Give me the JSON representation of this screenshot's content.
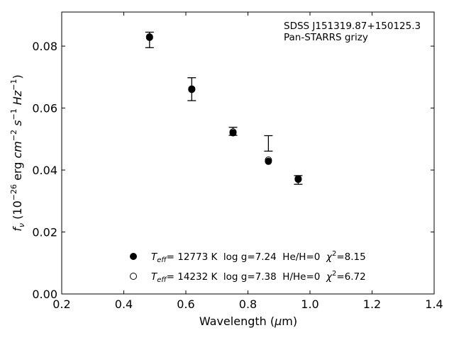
{
  "chart_data": {
    "type": "scatter",
    "title": "",
    "xlabel": "Wavelength (μm)",
    "ylabel": "fν (10⁻²⁶ erg cm⁻² s⁻¹ Hz⁻¹)",
    "xlim": [
      0.2,
      1.4
    ],
    "ylim": [
      0.0,
      0.091
    ],
    "xticks": [
      0.2,
      0.4,
      0.6,
      0.8,
      1.0,
      1.2,
      1.4
    ],
    "xtick_labels": [
      "0.2",
      "0.4",
      "0.6",
      "0.8",
      "1.0",
      "1.2",
      "1.4"
    ],
    "yticks": [
      0.0,
      0.02,
      0.04,
      0.06,
      0.08
    ],
    "ytick_labels": [
      "0.00",
      "0.02",
      "0.04",
      "0.06",
      "0.08"
    ],
    "grid": false,
    "annotations": [
      "SDSS J151319.87+150125.3",
      "Pan-STARRS grizy"
    ],
    "observed": {
      "x": [
        0.483,
        0.619,
        0.752,
        0.866,
        0.962
      ],
      "y": [
        0.082,
        0.0661,
        0.0525,
        0.0486,
        0.0368
      ],
      "yerr": [
        0.0025,
        0.0037,
        0.0013,
        0.0025,
        0.0014
      ]
    },
    "series": [
      {
        "name": "Teff= 12773 K  log g=7.24  He/H=0  χ²=8.15",
        "marker": "filled-circle",
        "x": [
          0.483,
          0.619,
          0.752,
          0.866,
          0.962
        ],
        "y": [
          0.0828,
          0.066,
          0.052,
          0.0428,
          0.037
        ]
      },
      {
        "name": "Teff= 14232 K  log g=7.38  H/He=0  χ²=6.72",
        "marker": "open-circle",
        "x": [
          0.483,
          0.619,
          0.752,
          0.866,
          0.962
        ],
        "y": [
          0.083,
          0.0662,
          0.0523,
          0.0432,
          0.0372
        ]
      }
    ],
    "legend_position": "bottom-center",
    "legend": [
      {
        "teff_label": "T",
        "teff_sub": "eff",
        "rest": "= 12773 K  log g=7.24  He/H=0  ",
        "chi": "χ",
        "chi_sup": "2",
        "chi_val": "=8.15"
      },
      {
        "teff_label": "T",
        "teff_sub": "eff",
        "rest": "= 14232 K  log g=7.38  H/He=0  ",
        "chi": "χ",
        "chi_sup": "2",
        "chi_val": "=6.72"
      }
    ],
    "colors": {
      "marker": "#000000",
      "axes": "#000000",
      "background": "#ffffff"
    }
  }
}
